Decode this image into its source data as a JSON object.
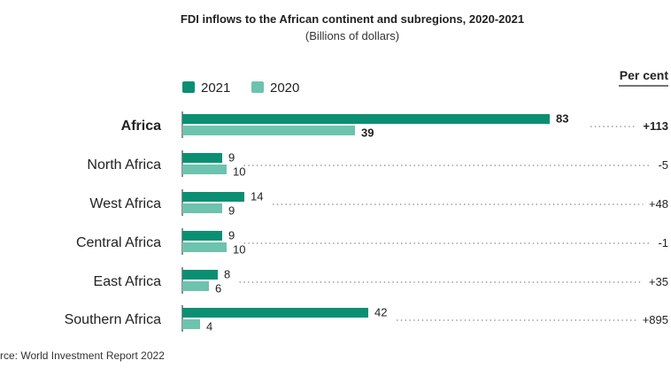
{
  "chart_data": {
    "type": "bar",
    "orientation": "horizontal",
    "title": "FDI inflows to the African continent and subregions, 2020-2021",
    "subtitle": "(Billions of dollars)",
    "categories": [
      "Africa",
      "North Africa",
      "West Africa",
      "Central Africa",
      "East Africa",
      "Southern Africa"
    ],
    "series": [
      {
        "name": "2021",
        "color": "#0b8f72",
        "values": [
          83,
          9,
          14,
          9,
          8,
          42
        ]
      },
      {
        "name": "2020",
        "color": "#6dc3ad",
        "values": [
          39,
          10,
          9,
          10,
          6,
          4
        ]
      }
    ],
    "percent_change_header": "Per cent",
    "percent_change": [
      "+113",
      "-5",
      "+48",
      "-1",
      "+35",
      "+895"
    ],
    "highlight_category": "Africa",
    "xlim": [
      0,
      83
    ],
    "legend_position": "top-left",
    "grid": false,
    "source": "rce: World Investment Report 2022"
  }
}
